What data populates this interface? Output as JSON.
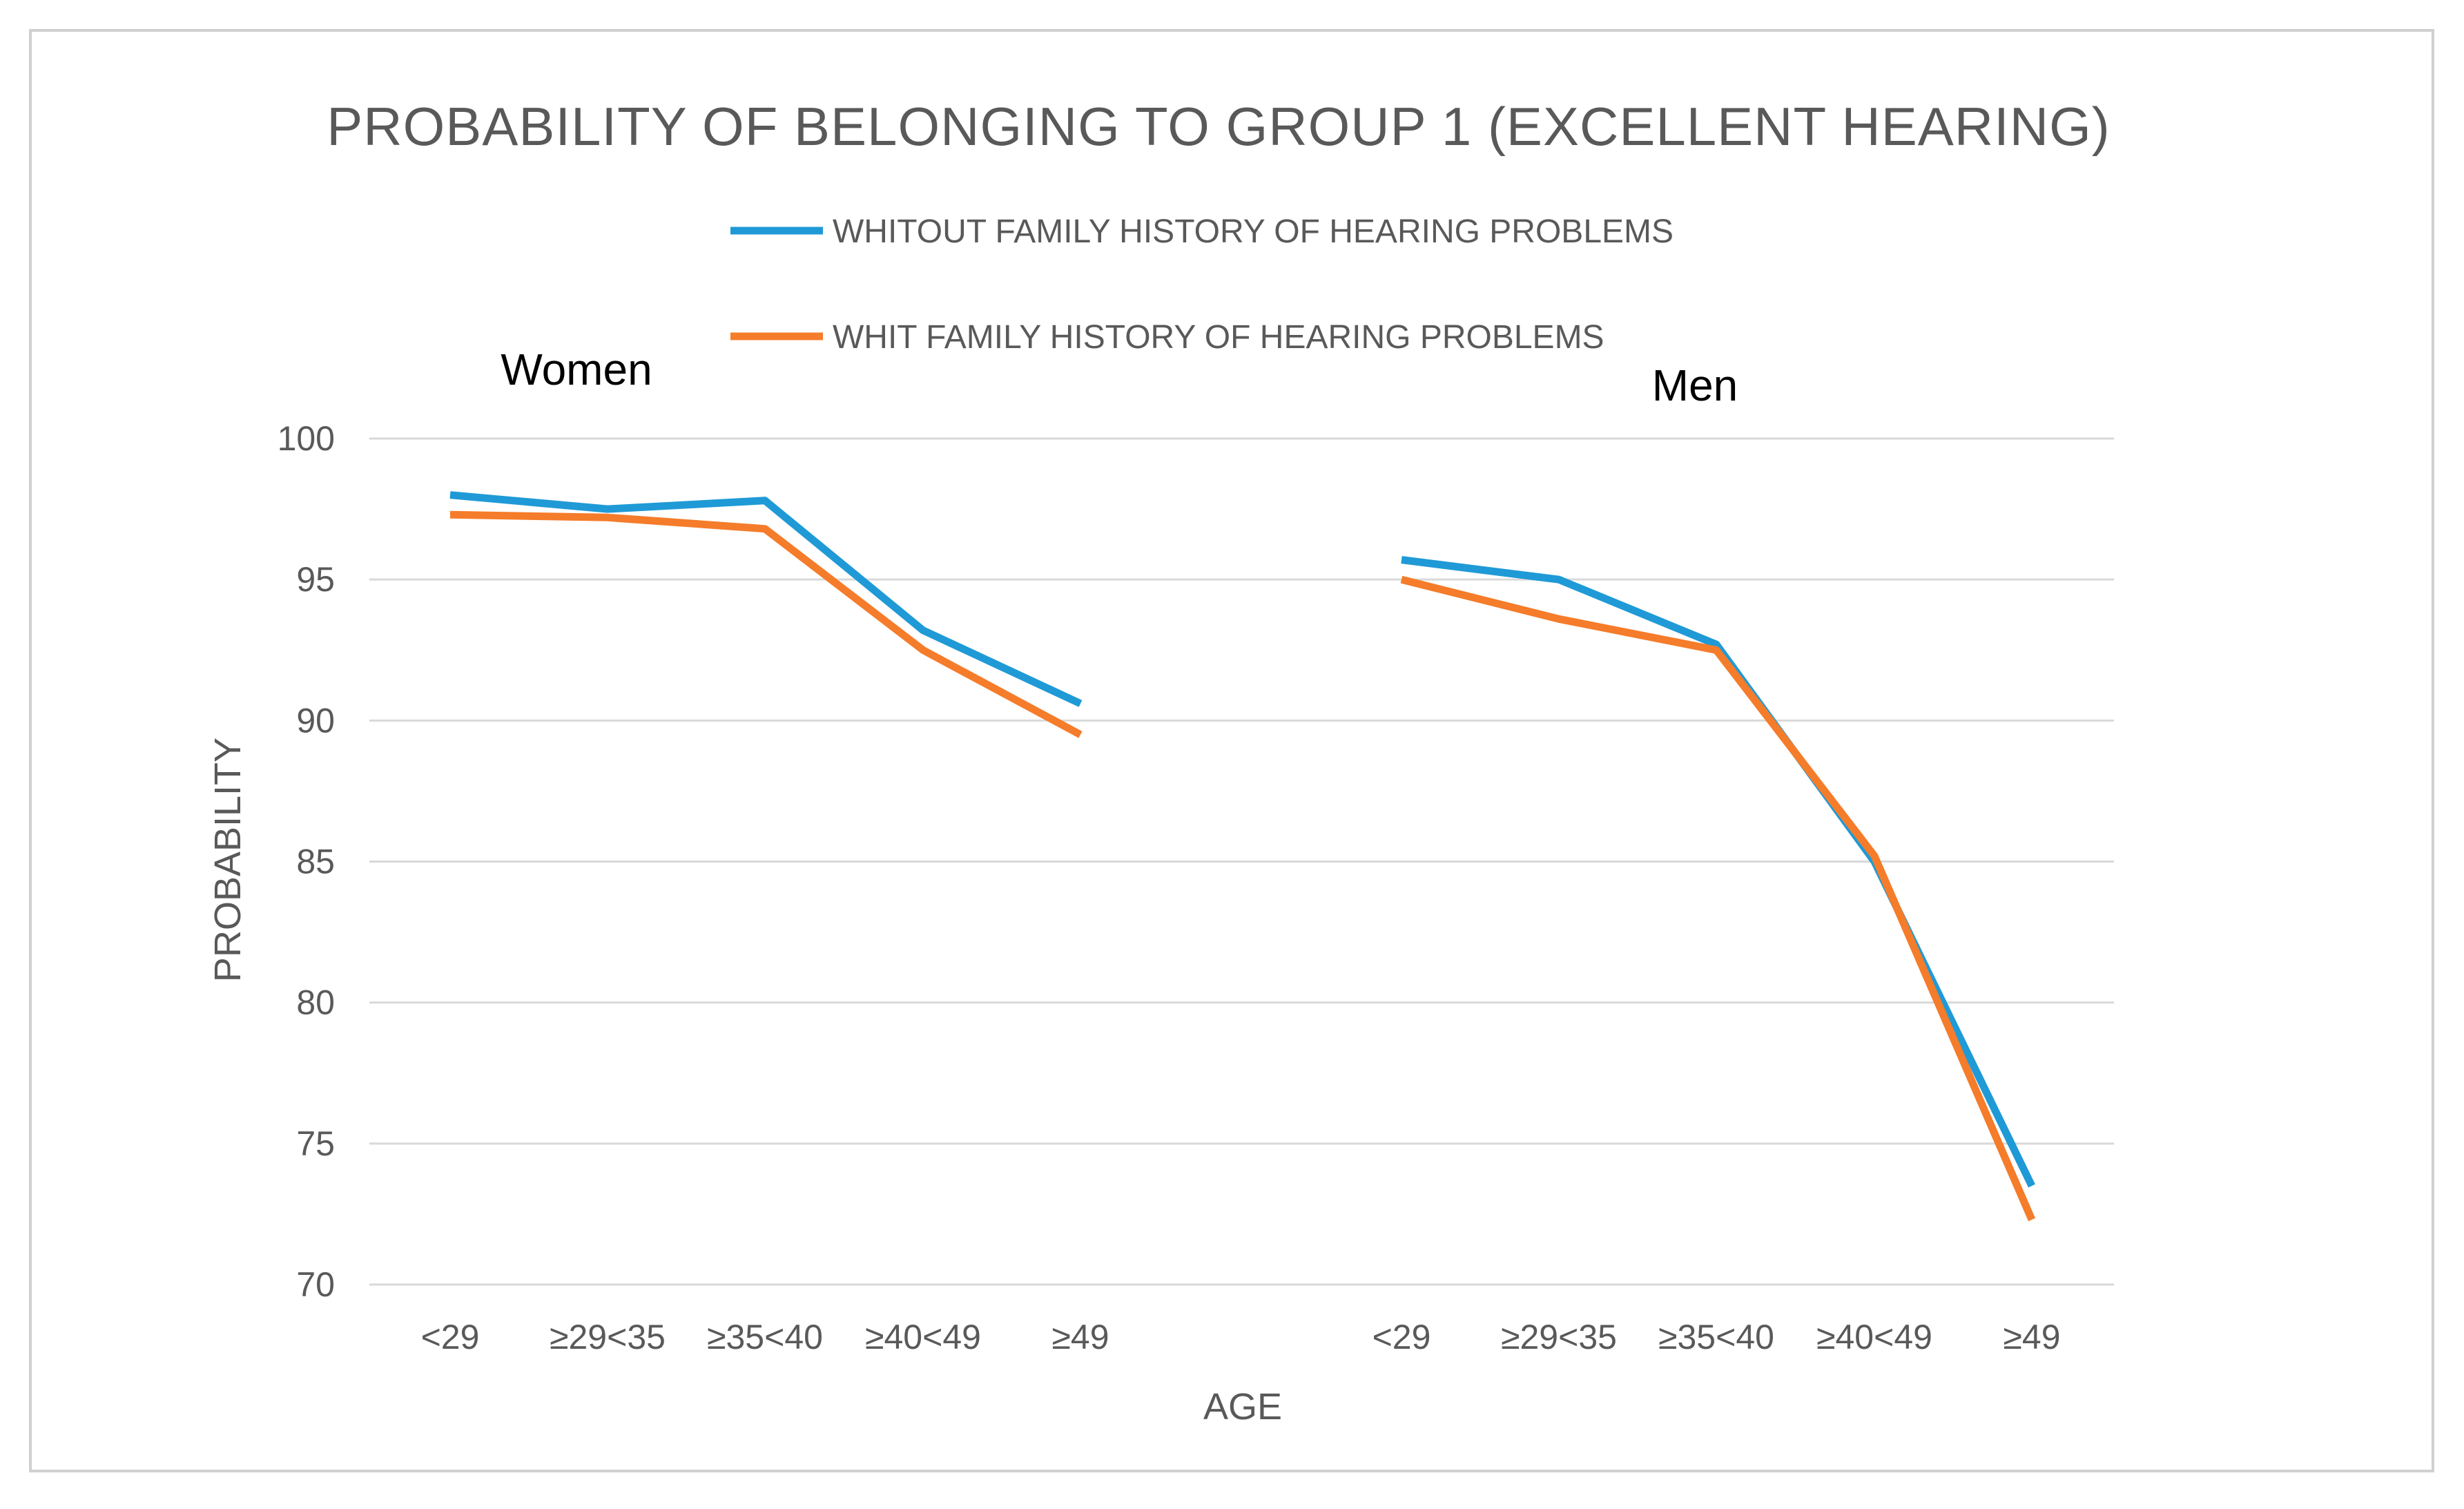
{
  "chart_data": {
    "type": "line",
    "title": "PROBABILITY OF BELONGING TO GROUP 1 (EXCELLENT HEARING)",
    "xlabel": "AGE",
    "ylabel": "PROBABILITY",
    "ylim": [
      70,
      100
    ],
    "yticks": [
      100,
      95,
      90,
      85,
      80,
      75,
      70
    ],
    "grid": true,
    "legend_position": "top-center",
    "panels": [
      {
        "label": "Women",
        "categories": [
          "<29",
          "≥29<35",
          "≥35<40",
          "≥40<49",
          "≥49"
        ],
        "series": [
          {
            "name": "WHITOUT FAMILY HISTORY OF HEARING PROBLEMS",
            "color": "#1f9ad6",
            "values": [
              98.0,
              97.5,
              97.8,
              93.2,
              90.6
            ]
          },
          {
            "name": "WHIT FAMILY HISTORY OF HEARING PROBLEMS",
            "color": "#f57c2a",
            "values": [
              97.3,
              97.2,
              96.8,
              92.5,
              89.5
            ]
          }
        ]
      },
      {
        "label": "Men",
        "categories": [
          "<29",
          "≥29<35",
          "≥35<40",
          "≥40<49",
          "≥49"
        ],
        "series": [
          {
            "name": "WHITOUT FAMILY HISTORY OF HEARING PROBLEMS",
            "color": "#1f9ad6",
            "values": [
              95.7,
              95.0,
              92.7,
              85.0,
              73.5
            ]
          },
          {
            "name": "WHIT FAMILY HISTORY OF HEARING PROBLEMS",
            "color": "#f57c2a",
            "values": [
              95.0,
              93.6,
              92.5,
              85.2,
              72.3
            ]
          }
        ]
      }
    ],
    "legend": [
      {
        "name": "WHITOUT FAMILY HISTORY OF HEARING PROBLEMS",
        "color": "#1f9ad6"
      },
      {
        "name": "WHIT FAMILY HISTORY OF HEARING PROBLEMS",
        "color": "#f57c2a"
      }
    ]
  }
}
